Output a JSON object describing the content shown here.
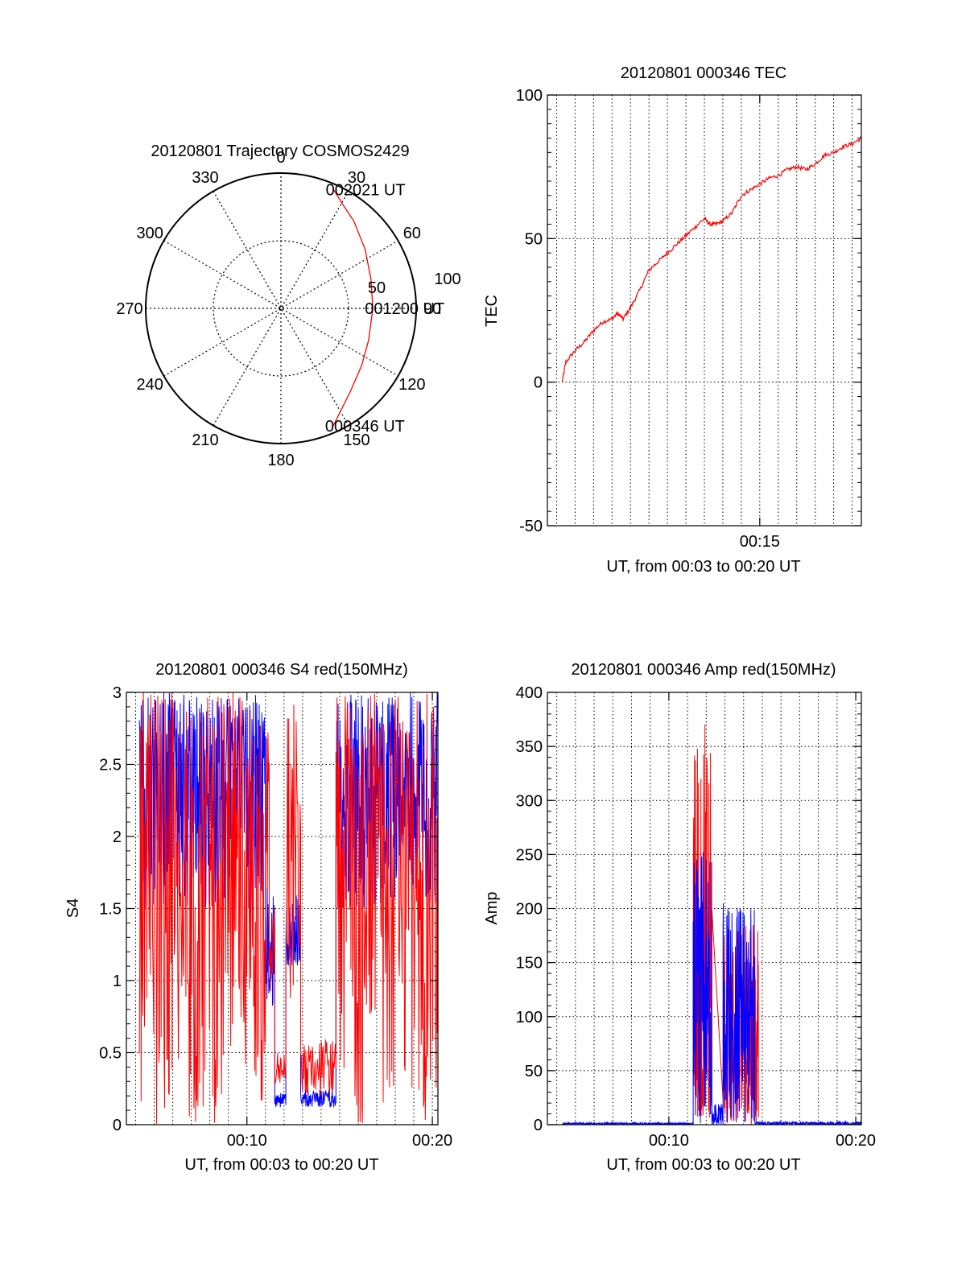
{
  "colors": {
    "red": "#ff0000",
    "blue": "#0000ff",
    "axis": "#000000",
    "grid": "#000000",
    "background": "#ffffff"
  },
  "chart_data": [
    {
      "id": "trajectory",
      "type": "polar",
      "title": "20120801 Trajectory COSMOS2429",
      "azimuth_ticks": [
        "0",
        "30",
        "60",
        "90",
        "120",
        "150",
        "180",
        "210",
        "240",
        "270",
        "300",
        "330"
      ],
      "radial_ticks": [
        "50",
        "100"
      ],
      "grid": true,
      "series": [
        {
          "color": "#ff0000",
          "points": [
            {
              "az": 156,
              "r": 95
            },
            {
              "az": 150,
              "r": 88
            },
            {
              "az": 140,
              "r": 80
            },
            {
              "az": 125,
              "r": 73
            },
            {
              "az": 110,
              "r": 69
            },
            {
              "az": 90,
              "r": 68
            },
            {
              "az": 72,
              "r": 70
            },
            {
              "az": 55,
              "r": 76
            },
            {
              "az": 40,
              "r": 84
            },
            {
              "az": 30,
              "r": 90
            },
            {
              "az": 24,
              "r": 96
            }
          ]
        }
      ],
      "annotations": [
        {
          "text": "002021 UT",
          "az": 24,
          "r": 96
        },
        {
          "text": "001200 UT",
          "az": 90,
          "r": 68
        },
        {
          "text": "000346 UT",
          "az": 156,
          "r": 95
        }
      ]
    },
    {
      "id": "tec",
      "type": "line",
      "title": "20120801 000346 TEC",
      "xlabel": "UT, from 00:03 to 00:20 UT",
      "ylabel": "TEC",
      "xlim": [
        3.5,
        20.5
      ],
      "ylim": [
        -50,
        100
      ],
      "xticks": [
        {
          "value": 15,
          "label": "00:15"
        }
      ],
      "yticks": [
        -50,
        0,
        50,
        100
      ],
      "grid": true,
      "series": [
        {
          "color": "#ff0000",
          "x": [
            4.3,
            4.5,
            5.0,
            5.5,
            6.0,
            6.5,
            7.0,
            7.3,
            7.6,
            8.0,
            8.5,
            9.0,
            9.5,
            10.0,
            10.5,
            11.0,
            11.5,
            12.0,
            12.3,
            12.6,
            13.0,
            13.5,
            14.0,
            14.5,
            15.0,
            15.5,
            16.0,
            16.5,
            17.0,
            17.5,
            18.0,
            18.5,
            19.0,
            19.5,
            20.0,
            20.5
          ],
          "y": [
            0,
            7,
            11,
            14,
            18,
            21,
            22,
            24,
            22,
            26,
            32,
            39,
            42,
            45,
            48,
            51,
            54,
            57,
            55,
            55,
            56,
            59,
            65,
            67,
            69,
            71,
            72,
            74,
            75,
            74,
            76,
            79,
            80,
            82,
            83,
            85
          ]
        }
      ]
    },
    {
      "id": "s4",
      "type": "line",
      "title": "20120801 000346 S4 red(150MHz)",
      "xlabel": "UT, from 00:03 to 00:20 UT",
      "ylabel": "S4",
      "xlim": [
        3.5,
        20.3
      ],
      "ylim": [
        0,
        3
      ],
      "xticks": [
        {
          "value": 10,
          "label": "00:10"
        },
        {
          "value": 20,
          "label": "00:20"
        }
      ],
      "yticks": [
        {
          "value": 0,
          "label": "0"
        },
        {
          "value": 0.5,
          "label": "0.5"
        },
        {
          "value": 1,
          "label": "1"
        },
        {
          "value": 1.5,
          "label": "1.5"
        },
        {
          "value": 2,
          "label": "2"
        },
        {
          "value": 2.5,
          "label": "2.5"
        },
        {
          "value": 3,
          "label": "3"
        }
      ],
      "grid": true,
      "series": [
        {
          "color": "#ff0000",
          "segments": [
            {
              "x0": 4.2,
              "x1": 11.2,
              "lo": 0.0,
              "mid": 1.9,
              "hi": 3.0
            },
            {
              "x0": 11.2,
              "x1": 11.5,
              "lo": 0.6,
              "mid": 1.0,
              "hi": 1.6
            },
            {
              "x0": 11.5,
              "x1": 12.1,
              "lo": 0.25,
              "mid": 0.35,
              "hi": 0.5
            },
            {
              "x0": 12.1,
              "x1": 12.9,
              "lo": 0.8,
              "mid": 1.4,
              "hi": 3.0
            },
            {
              "x0": 12.9,
              "x1": 14.8,
              "lo": 0.2,
              "mid": 0.4,
              "hi": 0.6
            },
            {
              "x0": 14.8,
              "x1": 20.3,
              "lo": 0.0,
              "mid": 2.0,
              "hi": 3.0
            }
          ]
        },
        {
          "color": "#0000ff",
          "segments": [
            {
              "x0": 4.2,
              "x1": 11.0,
              "lo": 1.5,
              "mid": 2.5,
              "hi": 3.0
            },
            {
              "x0": 11.0,
              "x1": 11.5,
              "lo": 0.8,
              "mid": 1.2,
              "hi": 1.7
            },
            {
              "x0": 11.5,
              "x1": 12.1,
              "lo": 0.12,
              "mid": 0.18,
              "hi": 0.22
            },
            {
              "x0": 12.1,
              "x1": 12.9,
              "lo": 1.1,
              "mid": 1.3,
              "hi": 1.6
            },
            {
              "x0": 12.9,
              "x1": 14.8,
              "lo": 0.12,
              "mid": 0.17,
              "hi": 0.25
            },
            {
              "x0": 14.8,
              "x1": 20.3,
              "lo": 1.5,
              "mid": 2.4,
              "hi": 3.0
            }
          ]
        }
      ]
    },
    {
      "id": "amp",
      "type": "line",
      "title": "20120801 000346 Amp red(150MHz)",
      "xlabel": "UT, from 00:03 to 00:20 UT",
      "ylabel": "Amp",
      "xlim": [
        3.5,
        20.3
      ],
      "ylim": [
        0,
        400
      ],
      "xticks": [
        {
          "value": 10,
          "label": "00:10"
        },
        {
          "value": 20,
          "label": "00:20"
        }
      ],
      "yticks": [
        0,
        50,
        100,
        150,
        200,
        250,
        300,
        350,
        400
      ],
      "grid": true,
      "series": [
        {
          "color": "#0000ff",
          "segments": [
            {
              "x0": 4.3,
              "x1": 11.3,
              "lo": 0,
              "mid": 1,
              "hi": 2
            },
            {
              "x0": 11.3,
              "x1": 12.3,
              "lo": 0,
              "mid": 120,
              "hi": 255
            },
            {
              "x0": 12.3,
              "x1": 12.9,
              "lo": 0,
              "mid": 5,
              "hi": 20
            },
            {
              "x0": 12.9,
              "x1": 14.6,
              "lo": 0,
              "mid": 90,
              "hi": 205
            },
            {
              "x0": 14.6,
              "x1": 20.3,
              "lo": 0,
              "mid": 1,
              "hi": 3
            }
          ]
        },
        {
          "color": "#ff0000",
          "segments": [
            {
              "x0": 11.3,
              "x1": 12.3,
              "lo": 0,
              "mid": 50,
              "hi": 383
            },
            {
              "x0": 12.9,
              "x1": 14.8,
              "lo": 0,
              "mid": 45,
              "hi": 185
            }
          ]
        }
      ]
    }
  ]
}
